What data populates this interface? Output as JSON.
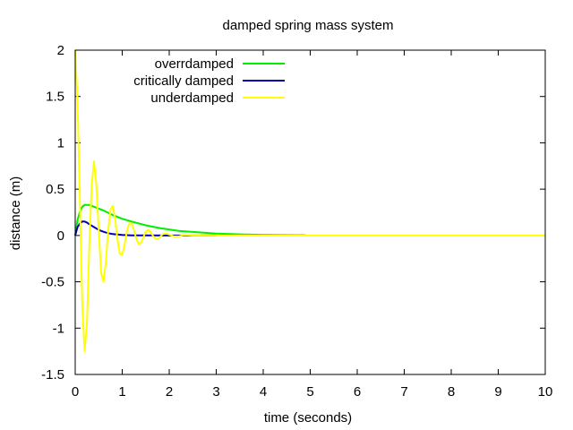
{
  "chart_data": {
    "type": "line",
    "title": "damped spring mass system",
    "xlabel": "time (seconds)",
    "ylabel": "distance (m)",
    "xlim": [
      0,
      10
    ],
    "ylim": [
      -1.5,
      2
    ],
    "xticks": [
      "0",
      "1",
      "2",
      "3",
      "4",
      "5",
      "6",
      "7",
      "8",
      "9",
      "10"
    ],
    "yticks": [
      "-1.5",
      "-1",
      "-0.5",
      "0",
      "0.5",
      "1",
      "1.5",
      "2"
    ],
    "grid": false,
    "legend_position": "top-left",
    "series": [
      {
        "name": "overrdamped",
        "color": "#00ee00",
        "x": [
          0,
          0.05,
          0.1,
          0.15,
          0.2,
          0.3,
          0.4,
          0.6,
          0.8,
          1.0,
          1.2,
          1.5,
          1.8,
          2.2,
          2.6,
          3.0,
          3.5,
          4.0,
          4.5,
          4.9
        ],
        "y": [
          0,
          0.17,
          0.26,
          0.31,
          0.33,
          0.33,
          0.31,
          0.27,
          0.22,
          0.18,
          0.15,
          0.11,
          0.08,
          0.05,
          0.035,
          0.02,
          0.012,
          0.007,
          0.004,
          0.003
        ]
      },
      {
        "name": "critically damped",
        "color": "#0000b0",
        "x": [
          0,
          0.05,
          0.1,
          0.15,
          0.2,
          0.25,
          0.3,
          0.4,
          0.5,
          0.6,
          0.7,
          0.8,
          0.9,
          1.0,
          1.2,
          1.5,
          2.0,
          2.5,
          3.0
        ],
        "y": [
          0,
          0.09,
          0.13,
          0.15,
          0.15,
          0.14,
          0.12,
          0.09,
          0.06,
          0.04,
          0.025,
          0.015,
          0.01,
          0.006,
          0.002,
          0.001,
          0,
          0,
          0
        ]
      },
      {
        "name": "underdamped",
        "color": "#ffff00",
        "x": [
          0,
          0.05,
          0.1,
          0.15,
          0.2,
          0.25,
          0.3,
          0.35,
          0.4,
          0.45,
          0.5,
          0.55,
          0.6,
          0.65,
          0.7,
          0.75,
          0.8,
          0.85,
          0.9,
          0.95,
          1.0,
          1.05,
          1.1,
          1.15,
          1.2,
          1.25,
          1.3,
          1.35,
          1.4,
          1.45,
          1.5,
          1.55,
          1.6,
          1.65,
          1.7,
          1.75,
          1.8,
          1.85,
          1.9,
          1.95,
          2.0,
          2.1,
          2.2,
          2.3,
          2.4,
          2.5,
          2.7,
          3.0,
          3.5,
          4.0,
          5.0,
          6.0,
          7.0,
          8.0,
          9.0,
          10.0
        ],
        "y": [
          2.0,
          1.45,
          0.35,
          -0.75,
          -1.25,
          -0.95,
          -0.1,
          0.55,
          0.8,
          0.55,
          0.05,
          -0.4,
          -0.5,
          -0.3,
          0.05,
          0.28,
          0.32,
          0.18,
          -0.05,
          -0.2,
          -0.21,
          -0.1,
          0.05,
          0.13,
          0.13,
          0.06,
          -0.04,
          -0.09,
          -0.08,
          -0.02,
          0.04,
          0.06,
          0.04,
          0.0,
          -0.03,
          -0.04,
          -0.02,
          0.01,
          0.02,
          0.02,
          0.01,
          -0.01,
          -0.01,
          0.005,
          0.004,
          0.0,
          0.0,
          0.0,
          0.0,
          0.0,
          0.0,
          0.0,
          0.0,
          0.0,
          0.0,
          0.0
        ]
      }
    ]
  }
}
